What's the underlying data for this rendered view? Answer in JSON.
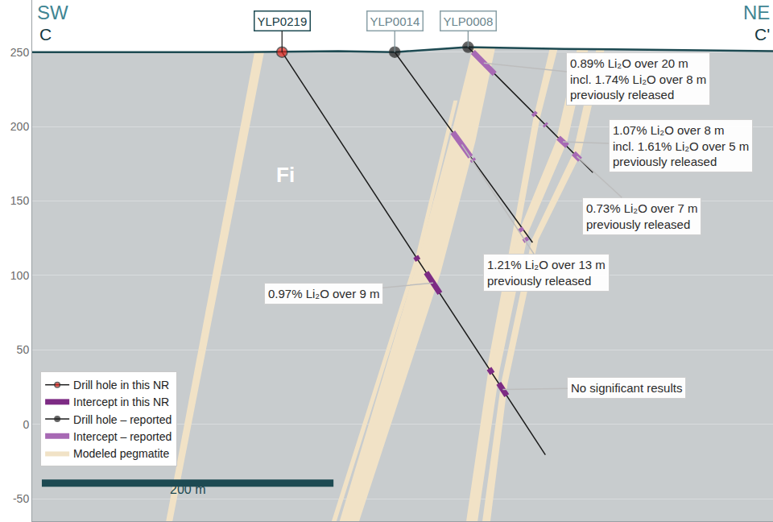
{
  "chart_data": {
    "type": "section",
    "section_labels": {
      "left": [
        "SW",
        "C"
      ],
      "right": [
        "NE",
        "C'"
      ]
    },
    "rock_label": "Fi",
    "xlim": [
      0,
      508
    ],
    "ylim": [
      -65,
      285
    ],
    "yticks": [
      -50,
      0,
      50,
      100,
      150,
      200,
      250
    ],
    "tick_labels": "y",
    "grid": true,
    "legend": "bottom left",
    "surface": {
      "x": [
        0,
        143.6,
        209.9,
        248.6,
        298.3,
        364.6,
        508.3
      ],
      "y": [
        250,
        250,
        250.6,
        250,
        253.3,
        252.2,
        250.6
      ]
    },
    "series": [
      {
        "name": "Drill hole in this NR",
        "type": "line",
        "marker": "circle",
        "line_style": "solid",
        "color": "#e3241b",
        "holes": [
          {
            "label": "YLP0219",
            "x": [
              171.3,
              351.9
            ],
            "y": [
              250,
              -20.4
            ]
          }
        ]
      },
      {
        "name": "Intercept in this NR",
        "type": "segment",
        "color": "#7d2b84",
        "segments": [
          {
            "x": [
              263.0,
              264.6
            ],
            "y": [
              112.8,
              110.2
            ]
          },
          {
            "x": [
              270.2,
              279.6
            ],
            "y": [
              102.0,
              88.0
            ]
          },
          {
            "x": [
              313.3,
              315.5
            ],
            "y": [
              37.5,
              34.2
            ]
          },
          {
            "x": [
              319.9,
              325.4
            ],
            "y": [
              27.6,
              19.3
            ]
          }
        ]
      },
      {
        "name": "Drill hole – reported",
        "type": "line",
        "marker": "circle",
        "line_style": "solid",
        "color": "#1e1e1e",
        "holes": [
          {
            "label": "YLP0014",
            "x": [
              248.6,
              343.1
            ],
            "y": [
              250,
              122.2
            ]
          },
          {
            "label": "YLP0008",
            "x": [
              298.9,
              384.5
            ],
            "y": [
              253.3,
              169.1
            ]
          }
        ]
      },
      {
        "name": "Intercept – reported",
        "type": "segment",
        "color": "#a769b4",
        "segments": [
          {
            "x": [
              302.2,
              317.1
            ],
            "y": [
              250.1,
              235.4
            ]
          },
          {
            "x": [
              343.6,
              345.3
            ],
            "y": [
              209.3,
              207.7
            ]
          },
          {
            "x": [
              351.4,
              352.5
            ],
            "y": [
              201.7,
              200.6
            ]
          },
          {
            "x": [
              360.8,
              366.9
            ],
            "y": [
              192.5,
              187.0
            ]
          },
          {
            "x": [
              371.3,
              375.7
            ],
            "y": [
              182.1,
              177.8
            ]
          },
          {
            "x": [
              288.4,
              300.6
            ],
            "y": [
              196.2,
              179.7
            ]
          },
          {
            "x": [
              301.7,
              302.8
            ],
            "y": [
              178.2,
              176.8
            ]
          },
          {
            "x": [
              334.3,
              335.9
            ],
            "y": [
              131.8,
              129.6
            ]
          },
          {
            "x": [
              337.6,
              339.2
            ],
            "y": [
              125.1,
              122.9
            ]
          }
        ]
      },
      {
        "name": "Modeled pegmatite",
        "type": "area",
        "color": "#f1e2c6",
        "polygons": [
          {
            "x": [
              153.6,
              160.2,
              95.6,
              91.2
            ],
            "y": [
              256,
              256,
              -68,
              -68
            ]
          },
          {
            "x": [
              302.8,
              286.2,
              261.9,
              209.9,
              223.2,
              280.1,
              303.9,
              318.2
            ],
            "y": [
              256,
              190.0,
              101.9,
              -68,
              -68,
              101.9,
              190.0,
              256
            ]
          },
          {
            "x": [
              289.0,
              263.0,
              204.4,
              207.7,
              265.7,
              291.7
            ],
            "y": [
              217.5,
              112.9,
              -68,
              -68,
              112.9,
              217.5
            ]
          },
          {
            "x": [
              374.6,
              359.1,
              333.7,
              312.7,
              297.2,
              305.0,
              320.4,
              340.3,
              366.9,
              382.3
            ],
            "y": [
              256,
              190.0,
              129.4,
              35.8,
              -68,
              -68,
              35.8,
              129.4,
              190.0,
              256
            ]
          },
          {
            "x": [
              387.8,
              370.7,
              342.5,
              321.5,
              308.3,
              313.8,
              326.0,
              347.0,
              376.2,
              393.4
            ],
            "y": [
              256,
              181.7,
              123.9,
              27.5,
              -68,
              -68,
              27.5,
              123.9,
              181.7,
              256
            ]
          },
          {
            "x": [
              355.8,
              343.6,
              330.4,
              311.6,
              314.9,
              334.8,
              348.1,
              361.3
            ],
            "y": [
              256,
              205.4,
              133.8,
              35.8,
              35.8,
              133.8,
              205.4,
              256
            ]
          }
        ]
      }
    ],
    "callouts": [
      {
        "lines": [
          "0.89% Li₂O over 20 m",
          "incl. 1.74% Li₂O over 8 m",
          "previously released"
        ],
        "x": 309.7,
        "y": 242.7
      },
      {
        "lines": [
          "1.07% Li₂O over 8 m",
          "incl. 1.61% Li₂O over 5 m",
          "previously released"
        ],
        "x": 363.9,
        "y": 189.8
      },
      {
        "lines": [
          "0.73% Li₂O over 7 m",
          "previously released"
        ],
        "x": 373.5,
        "y": 180.0
      },
      {
        "lines": [
          "1.21% Li₂O over 13 m",
          "previously released"
        ],
        "x": 294.5,
        "y": 188.0
      },
      {
        "lines": [
          "0.97% Li₂O over 9 m"
        ],
        "x": 274.9,
        "y": 95.0
      },
      {
        "lines": [
          "No significant results"
        ],
        "x": 322.7,
        "y": 23.5
      }
    ],
    "scale_bar": {
      "length": 200,
      "label": "200 m"
    }
  }
}
